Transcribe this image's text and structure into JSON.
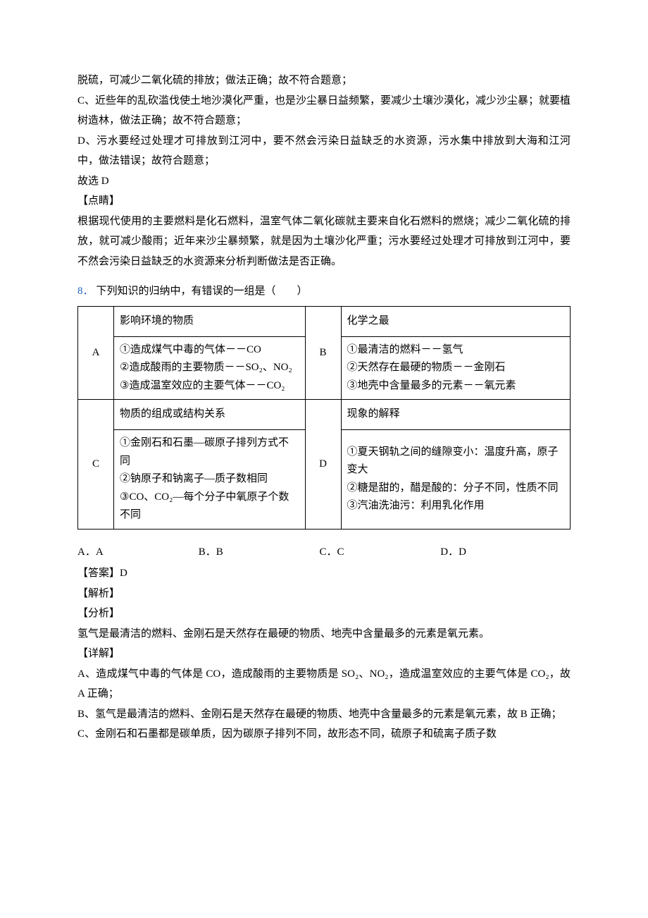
{
  "intro": {
    "p1": "脱硫，可减少二氧化硫的排放；做法正确；故不符合题意；",
    "p2": "C、近些年的乱砍滥伐使土地沙漠化严重，也是沙尘暴日益频繁，要减少土壤沙漠化，减少沙尘暴；就要植树造林，做法正确；故不符合题意；",
    "p3": "D、污水要经过处理才可排放到江河中，要不然会污染日益缺乏的水资源，污水集中排放到大海和江河中，做法错误；故符合题意；",
    "p4": "故选 D",
    "tipLabel": "【点睛】",
    "tip": "根据现代使用的主要燃料是化石燃料，温室气体二氧化碳就主要来自化石燃料的燃烧；减少二氧化硫的排放，就可减少酸雨；近年来沙尘暴频繁，就是因为土壤沙化严重；污水要经过处理才可排放到江河中，要不然会污染日益缺乏的水资源来分析判断做法是否正确。"
  },
  "question": {
    "num": "8．",
    "stem": "下列知识的归纳中，有错误的一组是（　　）"
  },
  "table": {
    "A": {
      "key": "A",
      "header": "影响环境的物质",
      "body": "①造成煤气中毒的气体－－CO\n②造成酸雨的主要物质－－SO₂、NO₂\n③造成温室效应的主要气体－－CO₂"
    },
    "B": {
      "key": "B",
      "header": "化学之最",
      "body": "①最清洁的燃料－－氢气\n②天然存在最硬的物质－－金刚石\n③地壳中含量最多的元素－－氧元素"
    },
    "C": {
      "key": "C",
      "header": "物质的组成或结构关系",
      "body": "①金刚石和石墨—碳原子排列方式不同\n②钠原子和钠离子—质子数相同\n③CO、CO₂—每个分子中氧原子个数不同"
    },
    "D": {
      "key": "D",
      "header": "现象的解释",
      "body": "①夏天钢轨之间的缝隙变小：温度升高，原子变大\n②糖是甜的，醋是酸的：分子不同，性质不同\n③汽油洗油污：利用乳化作用"
    }
  },
  "choices": {
    "A": "A．A",
    "B": "B．B",
    "C": "C．C",
    "D": "D．D"
  },
  "answer": {
    "ansLabel": "【答案】D",
    "expLabel": "【解析】",
    "anaLabel": "【分析】",
    "anaText": "氢气是最清洁的燃料、金刚石是天然存在最硬的物质、地壳中含量最多的元素是氧元素。",
    "detLabel": "【详解】",
    "detA": "A、造成煤气中毒的气体是 CO，造成酸雨的主要物质是 SO₂、NO₂，造成温室效应的主要气体是 CO₂，故 A 正确；",
    "detB": "B、氢气是最清洁的燃料、金刚石是天然存在最硬的物质、地壳中含量最多的元素是氧元素，故 B 正确；",
    "detC": "C、金刚石和石墨都是碳单质，因为碳原子排列不同，故形态不同，硫原子和硫离子质子数"
  }
}
